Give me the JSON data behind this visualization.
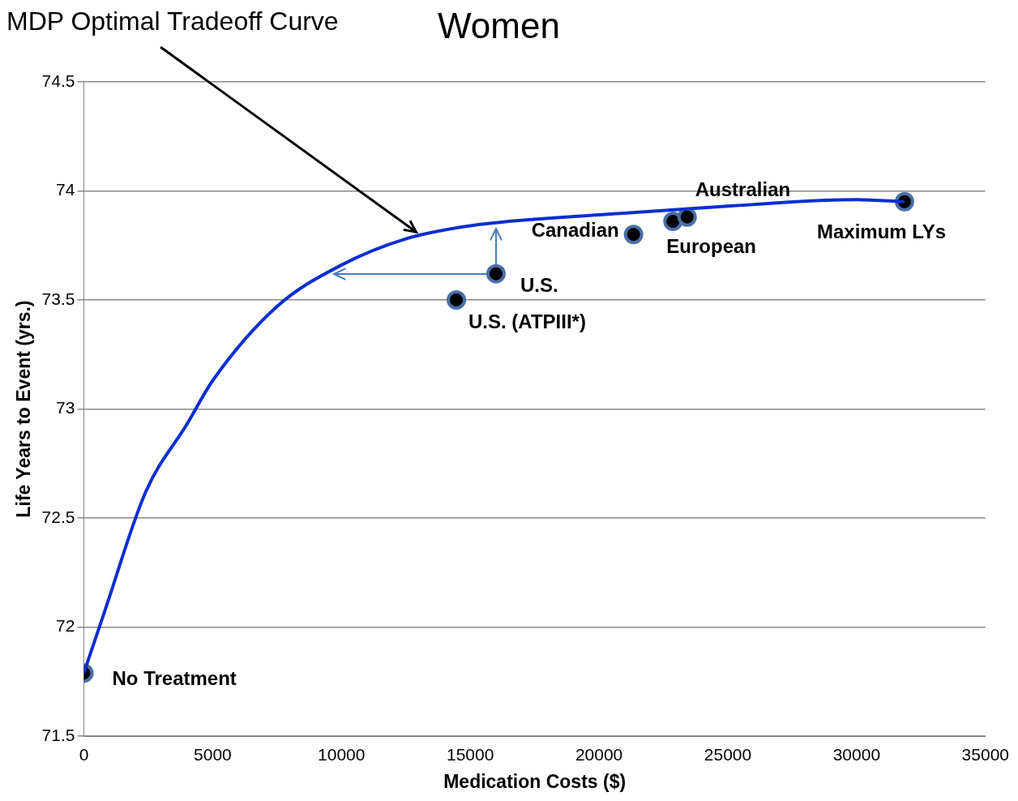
{
  "chart_data": {
    "type": "line",
    "title": "Women",
    "xlabel": "Medication Costs ($)",
    "ylabel": "Life Years to Event (yrs.)",
    "xlim": [
      0,
      35000
    ],
    "xticks": [
      0,
      5000,
      10000,
      15000,
      20000,
      25000,
      30000,
      35000
    ],
    "ylim": [
      71.5,
      74.5
    ],
    "yticks": [
      71.5,
      72,
      72.5,
      73,
      73.5,
      74,
      74.5
    ],
    "grid": "y",
    "legend": false,
    "series": [
      {
        "color": "#0a2fd0",
        "marker": "none",
        "x": [
          0,
          800,
          2400,
          4000,
          5000,
          7500,
          10000,
          12500,
          15000,
          20000,
          25000,
          30000,
          31860
        ],
        "values": [
          71.79,
          72.07,
          72.62,
          72.93,
          73.13,
          73.47,
          73.66,
          73.78,
          73.84,
          73.89,
          73.93,
          73.96,
          73.95
        ]
      },
      {
        "type": "scatter",
        "color": "#000000",
        "marker": "circle",
        "x": [
          0,
          14460,
          16000,
          21340,
          22870,
          23420,
          31860
        ],
        "values": [
          71.79,
          73.5,
          73.62,
          73.8,
          73.86,
          73.88,
          73.95
        ]
      }
    ],
    "annotations": [
      {
        "text": "MDP Optimal Tradeoff Curve",
        "x": 12900,
        "y": 73.8
      },
      {
        "text": "No Treatment",
        "x": 0,
        "y": 71.79
      },
      {
        "text": "U.S. (ATPIII*)",
        "x": 14460,
        "y": 73.5
      },
      {
        "text": "U.S.",
        "x": 16000,
        "y": 73.62
      },
      {
        "text": "Canadian",
        "x": 21340,
        "y": 73.8
      },
      {
        "text": "European",
        "x": 22870,
        "y": 73.86
      },
      {
        "text": "Australian",
        "x": 23420,
        "y": 73.88
      },
      {
        "text": "Maximum LYs",
        "x": 31860,
        "y": 73.95
      }
    ]
  }
}
